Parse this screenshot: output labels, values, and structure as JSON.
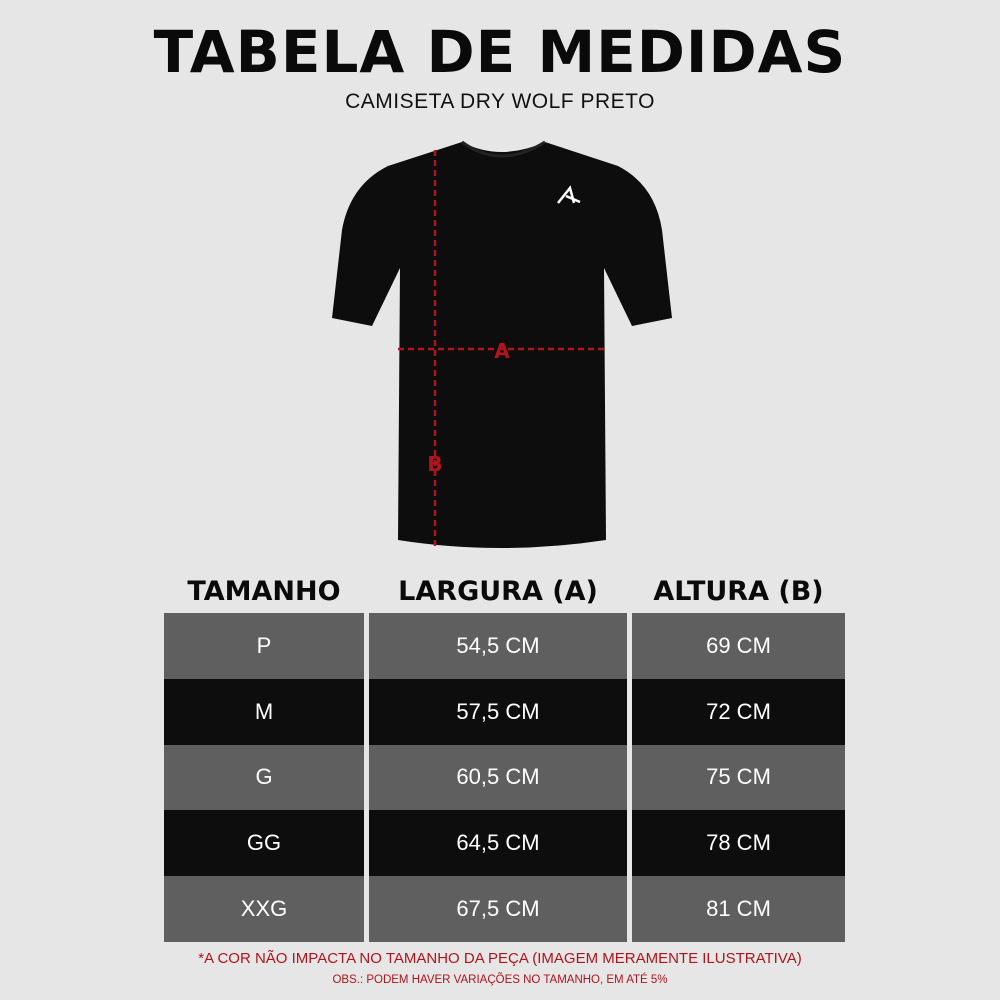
{
  "title": "TABELA DE MEDIDAS",
  "subtitle": "CAMISETA DRY WOLF PRETO",
  "diagram": {
    "label_a": "A",
    "label_b": "B",
    "shirt_color": "#0d0d0d",
    "measure_color": "#b0141c"
  },
  "table": {
    "headers": [
      "TAMANHO",
      "LARGURA (A)",
      "ALTURA (B)"
    ],
    "rows": [
      [
        "P",
        "54,5 CM",
        "69 CM"
      ],
      [
        "M",
        "57,5 CM",
        "72 CM"
      ],
      [
        "G",
        "60,5 CM",
        "75 CM"
      ],
      [
        "GG",
        "64,5 CM",
        "78 CM"
      ],
      [
        "XXG",
        "67,5 CM",
        "81 CM"
      ]
    ]
  },
  "notes": {
    "color_note": "*A COR NÃO IMPACTA NO TAMANHO DA PEÇA (IMAGEM MERAMENTE ILUSTRATIVA)",
    "variation_note": "OBS.: PODEM HAVER VARIAÇÕES NO TAMANHO, EM ATÉ 5%"
  }
}
